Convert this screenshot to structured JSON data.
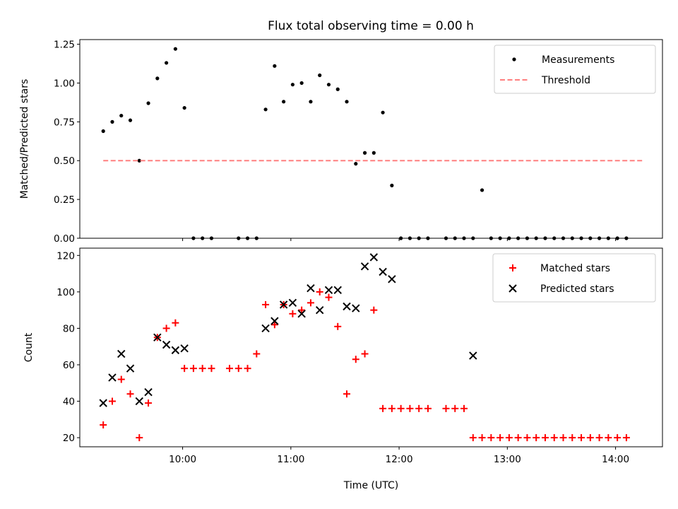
{
  "title": "Flux total observing time = 0.00 h",
  "chart_data": [
    {
      "type": "scatter",
      "ylabel": "Matched/Predicted stars",
      "ylim": [
        0,
        1.28
      ],
      "yticks": [
        0.0,
        0.25,
        0.5,
        0.75,
        1.0,
        1.25
      ],
      "ytick_labels": [
        "0.00",
        "0.25",
        "0.50",
        "0.75",
        "1.00",
        "1.25"
      ],
      "legend_position": "top-right",
      "series": [
        {
          "name": "Measurements",
          "marker": "dot",
          "color": "#000000",
          "x": [
            "09:16",
            "09:21",
            "09:26",
            "09:31",
            "09:36",
            "09:41",
            "09:46",
            "09:51",
            "09:56",
            "10:01",
            "10:06",
            "10:11",
            "10:16",
            "10:31",
            "10:36",
            "10:41",
            "10:46",
            "10:51",
            "10:56",
            "11:01",
            "11:06",
            "11:11",
            "11:16",
            "11:21",
            "11:26",
            "11:31",
            "11:36",
            "11:41",
            "11:46",
            "11:51",
            "11:56",
            "12:01",
            "12:06",
            "12:11",
            "12:16",
            "12:26",
            "12:31",
            "12:36",
            "12:41",
            "12:46",
            "12:51",
            "12:56",
            "13:01",
            "13:06",
            "13:11",
            "13:16",
            "13:21",
            "13:26",
            "13:31",
            "13:36",
            "13:41",
            "13:46",
            "13:51",
            "13:56",
            "14:01",
            "14:06"
          ],
          "y": [
            0.69,
            0.75,
            0.79,
            0.76,
            0.5,
            0.87,
            1.03,
            1.13,
            1.22,
            0.84,
            0,
            0,
            0,
            0,
            0,
            0,
            0.83,
            1.11,
            0.88,
            0.99,
            1.0,
            0.88,
            1.05,
            0.99,
            0.96,
            0.88,
            0.48,
            0.55,
            0.55,
            0.81,
            0.34,
            0,
            0,
            0,
            0,
            0,
            0,
            0,
            0,
            0.31,
            0,
            0,
            0,
            0,
            0,
            0,
            0,
            0,
            0,
            0,
            0,
            0,
            0,
            0,
            0,
            0
          ]
        },
        {
          "name": "Threshold",
          "style": "dashed",
          "color": "#ff7f7f",
          "x": [
            "09:16",
            "14:16"
          ],
          "y": [
            0.5,
            0.5
          ]
        }
      ]
    },
    {
      "type": "scatter",
      "xlabel": "Time (UTC)",
      "ylabel": "Count",
      "ylim": [
        15,
        124
      ],
      "yticks": [
        20,
        40,
        60,
        80,
        100,
        120
      ],
      "xticks": [
        "10:00",
        "11:00",
        "12:00",
        "13:00",
        "14:00"
      ],
      "legend_position": "top-right",
      "series": [
        {
          "name": "Matched stars",
          "marker": "plus",
          "color": "#ff0000",
          "x": [
            "09:16",
            "09:21",
            "09:26",
            "09:31",
            "09:36",
            "09:41",
            "09:46",
            "09:51",
            "09:56",
            "10:01",
            "10:06",
            "10:11",
            "10:16",
            "10:26",
            "10:31",
            "10:36",
            "10:41",
            "10:46",
            "10:51",
            "10:56",
            "11:01",
            "11:06",
            "11:11",
            "11:16",
            "11:21",
            "11:26",
            "11:31",
            "11:36",
            "11:41",
            "11:46",
            "11:51",
            "11:56",
            "12:01",
            "12:06",
            "12:11",
            "12:16",
            "12:26",
            "12:31",
            "12:36",
            "12:41",
            "12:46",
            "12:51",
            "12:56",
            "13:01",
            "13:06",
            "13:11",
            "13:16",
            "13:21",
            "13:26",
            "13:31",
            "13:36",
            "13:41",
            "13:46",
            "13:51",
            "13:56",
            "14:01",
            "14:06"
          ],
          "y": [
            27,
            40,
            52,
            44,
            20,
            39,
            75,
            80,
            83,
            58,
            58,
            58,
            58,
            58,
            58,
            58,
            66,
            93,
            82,
            93,
            88,
            90,
            94,
            100,
            97,
            81,
            44,
            63,
            66,
            90,
            36,
            36,
            36,
            36,
            36,
            36,
            36,
            36,
            36,
            20,
            20,
            20,
            20,
            20,
            20,
            20,
            20,
            20,
            20,
            20,
            20,
            20,
            20,
            20,
            20,
            20,
            20
          ]
        },
        {
          "name": "Predicted stars",
          "marker": "x",
          "color": "#000000",
          "x": [
            "09:16",
            "09:21",
            "09:26",
            "09:31",
            "09:36",
            "09:41",
            "09:46",
            "09:51",
            "09:56",
            "10:01",
            "10:46",
            "10:51",
            "10:56",
            "11:01",
            "11:06",
            "11:11",
            "11:16",
            "11:21",
            "11:26",
            "11:31",
            "11:36",
            "11:41",
            "11:46",
            "11:51",
            "11:56",
            "12:41"
          ],
          "y": [
            39,
            53,
            66,
            58,
            40,
            45,
            75,
            71,
            68,
            69,
            80,
            84,
            93,
            94,
            88,
            102,
            90,
            101,
            101,
            92,
            91,
            114,
            119,
            111,
            107,
            65
          ]
        }
      ]
    }
  ]
}
